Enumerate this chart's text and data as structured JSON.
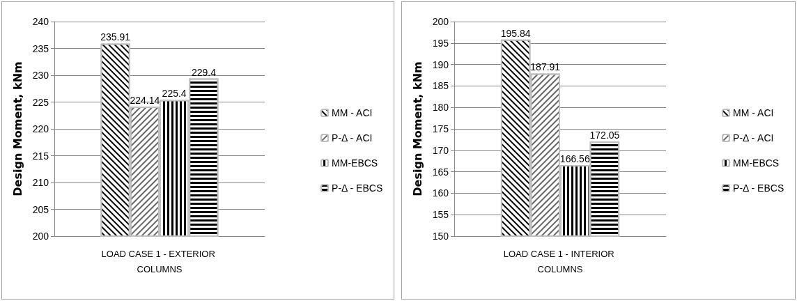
{
  "chart_data": [
    {
      "type": "bar",
      "ylabel": "Design Moment, kNm",
      "categories": [
        "LOAD CASE 1 - EXTERIOR COLUMNS"
      ],
      "ylim": [
        200,
        240
      ],
      "yticks": [
        200,
        205,
        210,
        215,
        220,
        225,
        230,
        235,
        240
      ],
      "grid": "y",
      "legend": "right",
      "data_labels": true,
      "series": [
        {
          "name": "MM - ACI",
          "color": "#ffffff",
          "values": [
            235.91
          ]
        },
        {
          "name": "P-Δ - ACI",
          "color": "#ffffff",
          "values": [
            224.14
          ]
        },
        {
          "name": "MM-EBCS",
          "color": "#ffffff",
          "values": [
            225.4
          ]
        },
        {
          "name": "P-Δ - EBCS",
          "color": "#ffffff",
          "values": [
            229.4
          ]
        }
      ]
    },
    {
      "type": "bar",
      "ylabel": "Design Moment, kNm",
      "categories": [
        "LOAD CASE 1 - INTERIOR COLUMNS"
      ],
      "ylim": [
        150,
        200
      ],
      "yticks": [
        150,
        155,
        160,
        165,
        170,
        175,
        180,
        185,
        190,
        195,
        200
      ],
      "grid": "y",
      "legend": "right",
      "data_labels": true,
      "series": [
        {
          "name": "MM - ACI",
          "color": "#ffffff",
          "values": [
            195.84
          ]
        },
        {
          "name": "P-Δ - ACI",
          "color": "#ffffff",
          "values": [
            187.91
          ]
        },
        {
          "name": "MM-EBCS",
          "color": "#ffffff",
          "values": [
            166.56
          ]
        },
        {
          "name": "P-Δ - EBCS",
          "color": "#ffffff",
          "values": [
            172.05
          ]
        }
      ]
    }
  ]
}
